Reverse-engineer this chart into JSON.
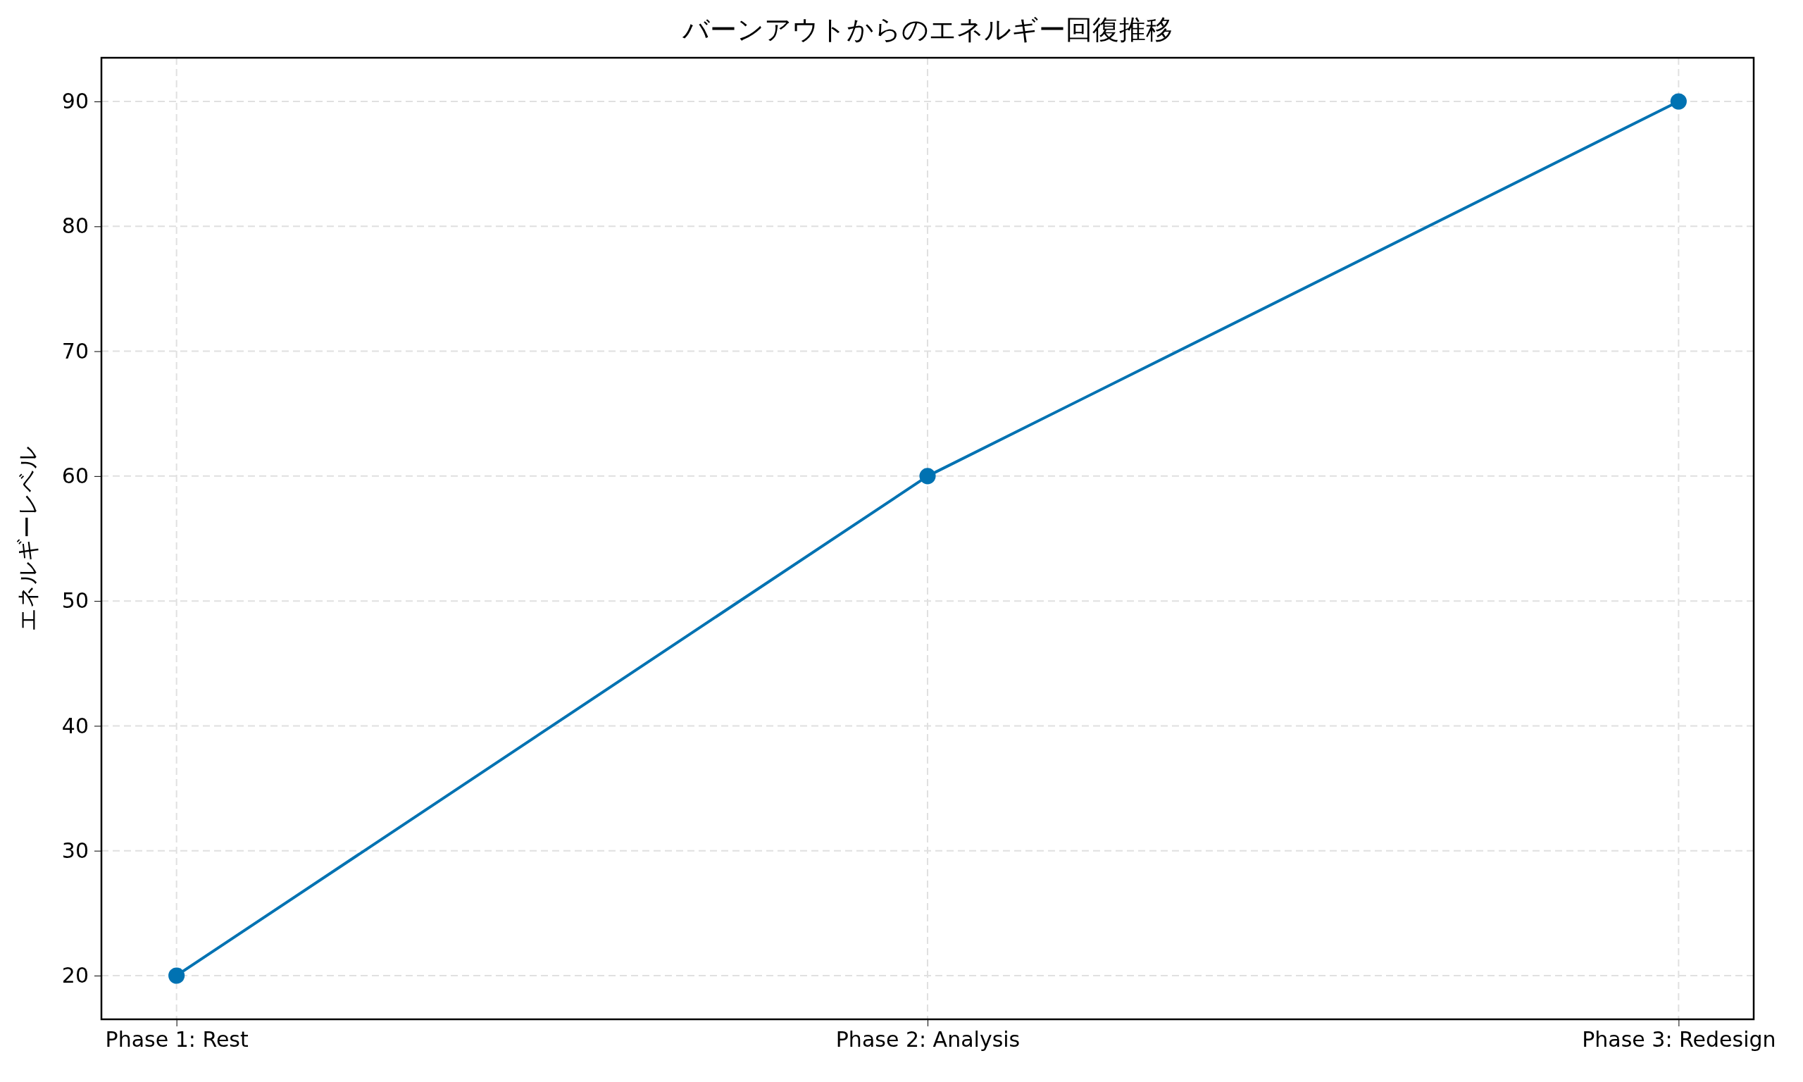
{
  "chart_data": {
    "type": "line",
    "title": "バーンアウトからのエネルギー回復推移",
    "ylabel": "エネルギーレベル",
    "categories": [
      "Phase 1: Rest",
      "Phase 2: Analysis",
      "Phase 3: Redesign"
    ],
    "series": [
      {
        "color": "#0072b2",
        "values": [
          20,
          60,
          90
        ]
      }
    ],
    "ylim": [
      16.5,
      93.5
    ],
    "yticks": [
      20,
      30,
      40,
      50,
      60,
      70,
      80,
      90
    ],
    "grid": true,
    "marker": "circle",
    "line_style": "solid"
  }
}
